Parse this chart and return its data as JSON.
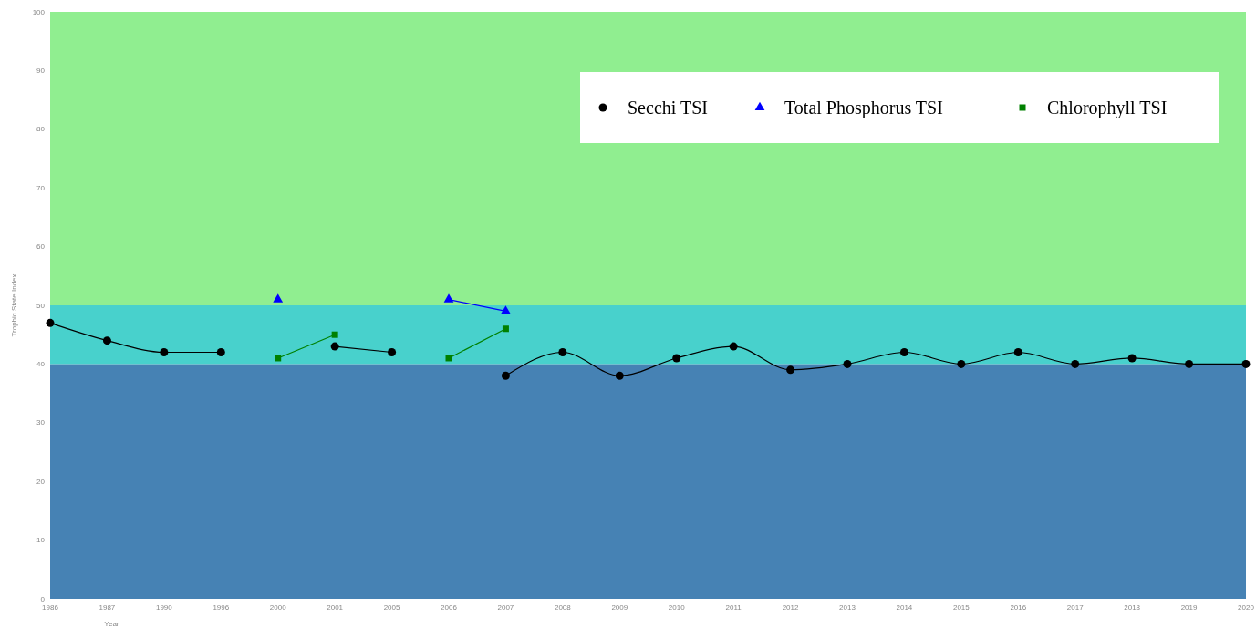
{
  "chart_data": {
    "type": "line",
    "xlabel": "Year",
    "ylabel": "Trophic State Index",
    "categories": [
      "1986",
      "1987",
      "1990",
      "1996",
      "2000",
      "2001",
      "2005",
      "2006",
      "2007",
      "2008",
      "2009",
      "2010",
      "2011",
      "2012",
      "2013",
      "2014",
      "2015",
      "2016",
      "2017",
      "2018",
      "2019",
      "2020"
    ],
    "series": [
      {
        "name": "Secchi TSI",
        "color": "#000000",
        "marker": "circle",
        "values": [
          47,
          44,
          42,
          42,
          null,
          43,
          42,
          null,
          38,
          42,
          38,
          41,
          43,
          39,
          40,
          42,
          40,
          42,
          40,
          41,
          40,
          40
        ]
      },
      {
        "name": "Total Phosphorus TSI",
        "color": "#0000ff",
        "marker": "triangle",
        "values": [
          null,
          null,
          null,
          null,
          51,
          null,
          null,
          51,
          49,
          null,
          null,
          null,
          null,
          null,
          null,
          null,
          null,
          null,
          null,
          null,
          null,
          null
        ]
      },
      {
        "name": "Chlorophyll TSI",
        "color": "#008000",
        "marker": "square",
        "values": [
          null,
          null,
          null,
          null,
          41,
          45,
          null,
          41,
          46,
          null,
          null,
          null,
          null,
          null,
          null,
          null,
          null,
          null,
          null,
          null,
          null,
          null
        ]
      }
    ],
    "ylim": [
      0,
      100
    ],
    "yticks": [
      0,
      10,
      20,
      30,
      40,
      50,
      60,
      70,
      80,
      90,
      100
    ],
    "bands": [
      {
        "axis": "y",
        "from": 0,
        "to": 40,
        "color": "#4682b4"
      },
      {
        "axis": "y",
        "from": 40,
        "to": 50,
        "color": "#48d1cc"
      },
      {
        "axis": "y",
        "from": 50,
        "to": 100,
        "color": "#90ee90"
      }
    ],
    "legend": "top right"
  }
}
